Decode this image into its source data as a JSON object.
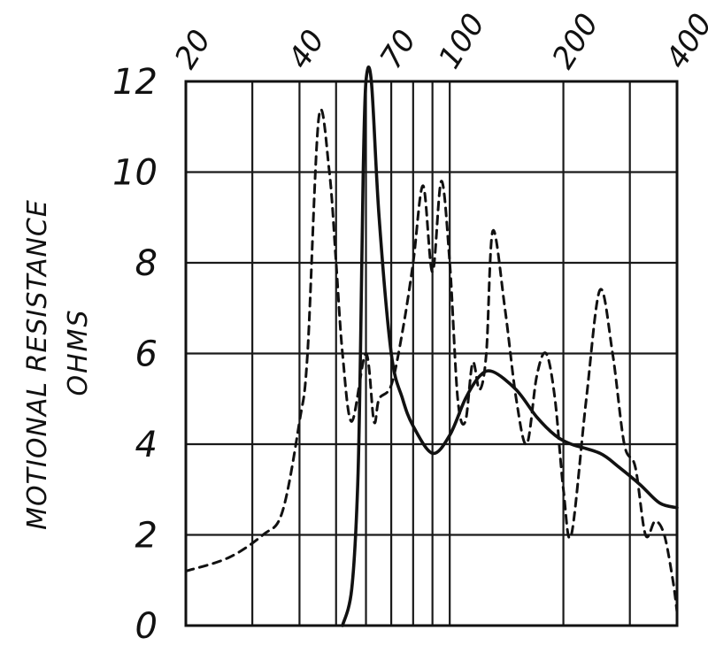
{
  "chart_data": {
    "type": "line",
    "title": "",
    "xlabel": "",
    "ylabel": "MOTIONAL RESISTANCE",
    "ylabel_units": "OHMS",
    "x_scale": "log",
    "x_ticks": [
      "20",
      "40",
      "70",
      "100",
      "200",
      "400"
    ],
    "y_ticks": [
      "0",
      "2",
      "4",
      "6",
      "8",
      "10",
      "12"
    ],
    "xlim": [
      20,
      400
    ],
    "ylim": [
      0,
      12
    ],
    "grid": true,
    "legend": "none",
    "series": [
      {
        "style": "solid",
        "x": [
          52,
          55,
          57,
          58,
          59,
          60,
          62,
          65,
          70,
          75,
          80,
          90,
          100,
          110,
          120,
          130,
          150,
          170,
          190,
          210,
          250,
          280,
          320,
          360,
          400
        ],
        "y": [
          0,
          0.8,
          3,
          6,
          10,
          12,
          12,
          9,
          6,
          5,
          4.4,
          3.8,
          4.2,
          5,
          5.5,
          5.6,
          5.2,
          4.6,
          4.2,
          4.0,
          3.8,
          3.5,
          3.1,
          2.7,
          2.6
        ]
      },
      {
        "style": "dashed",
        "x": [
          20,
          26,
          32,
          36,
          40,
          42,
          45,
          48,
          50,
          52,
          55,
          60,
          63,
          65,
          70,
          75,
          80,
          85,
          90,
          95,
          100,
          105,
          110,
          115,
          120,
          125,
          130,
          140,
          150,
          160,
          170,
          180,
          190,
          200,
          210,
          230,
          250,
          270,
          290,
          310,
          330,
          350,
          370,
          390,
          400
        ],
        "y": [
          1.2,
          1.5,
          2.0,
          2.5,
          4.5,
          6.0,
          11.2,
          10.0,
          8.0,
          6.0,
          4.5,
          6.0,
          4.5,
          5.0,
          5.3,
          6.5,
          8.0,
          9.7,
          7.8,
          9.8,
          8.0,
          5.0,
          4.5,
          5.8,
          5.2,
          6.0,
          8.7,
          7.0,
          5.0,
          4.0,
          5.5,
          6.0,
          5.0,
          3.0,
          2.0,
          5.0,
          7.4,
          6.0,
          4.0,
          3.5,
          2.0,
          2.3,
          2.0,
          1.0,
          0.3
        ]
      }
    ]
  }
}
